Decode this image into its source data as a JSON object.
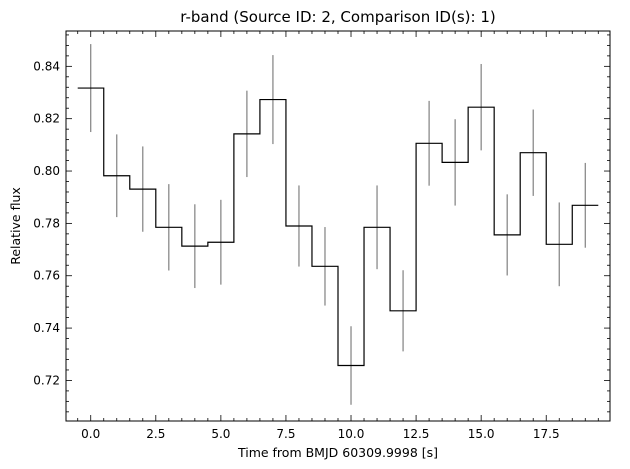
{
  "chart_data": {
    "type": "line",
    "drawstyle": "steps-mid",
    "title": "r-band (Source ID: 2, Comparison ID(s): 1)",
    "xlabel": "Time from BMJD 60309.9998 [s]",
    "ylabel": "Relative flux",
    "xlim": [
      -0.95,
      19.95
    ],
    "ylim": [
      0.7045,
      0.8535
    ],
    "xticks": [
      0.0,
      2.5,
      5.0,
      7.5,
      10.0,
      12.5,
      15.0,
      17.5
    ],
    "xtick_labels": [
      "0.0",
      "2.5",
      "5.0",
      "7.5",
      "10.0",
      "12.5",
      "15.0",
      "17.5"
    ],
    "yticks": [
      0.72,
      0.74,
      0.76,
      0.78,
      0.8,
      0.82,
      0.84
    ],
    "ytick_labels": [
      "0.72",
      "0.74",
      "0.76",
      "0.78",
      "0.80",
      "0.82",
      "0.84"
    ],
    "grid": false,
    "line_color": "#000000",
    "errorbar_color": "#808080",
    "x": [
      0,
      1,
      2,
      3,
      4,
      5,
      6,
      7,
      8,
      9,
      10,
      11,
      12,
      13,
      14,
      15,
      16,
      17,
      18,
      19
    ],
    "y": [
      0.8317,
      0.7982,
      0.7931,
      0.7785,
      0.7713,
      0.7728,
      0.8142,
      0.8273,
      0.779,
      0.7636,
      0.7257,
      0.7785,
      0.7466,
      0.8106,
      0.8033,
      0.8244,
      0.7756,
      0.807,
      0.772,
      0.7869
    ],
    "yerr": [
      0.0168,
      0.0158,
      0.0163,
      0.0165,
      0.016,
      0.0162,
      0.0165,
      0.017,
      0.0155,
      0.015,
      0.015,
      0.016,
      0.0155,
      0.0162,
      0.0165,
      0.0165,
      0.0155,
      0.0165,
      0.016,
      0.0162
    ]
  }
}
